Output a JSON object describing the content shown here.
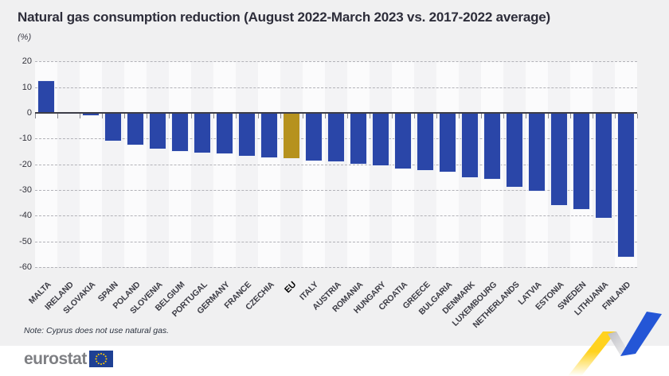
{
  "page": {
    "title": "Natural gas consumption reduction (August 2022-March 2023 vs. 2017-2022 average)",
    "subtitle": "(%)",
    "note": "Note: Cyprus does not use natural gas.",
    "brand": "eurostat"
  },
  "chart_data": {
    "type": "bar",
    "title": "Natural gas consumption reduction (August 2022-March 2023 vs. 2017-2022 average)",
    "unit_label": "(%)",
    "ylim": [
      -60,
      20
    ],
    "yticks": [
      20,
      10,
      0,
      -10,
      -20,
      -30,
      -40,
      -50,
      -60
    ],
    "grid": "horizontal-dashed",
    "legend": "none",
    "highlight_category": "EU",
    "categories": [
      "MALTA",
      "IRELAND",
      "SLOVAKIA",
      "SPAIN",
      "POLAND",
      "SLOVENIA",
      "BELGIUM",
      "PORTUGAL",
      "GERMANY",
      "FRANCE",
      "CZECHIA",
      "EU",
      "ITALY",
      "AUSTRIA",
      "ROMANIA",
      "HUNGARY",
      "CROATIA",
      "GREECE",
      "BULGARIA",
      "DENMARK",
      "LUXEMBOURG",
      "NETHERLANDS",
      "LATVIA",
      "ESTONIA",
      "SWEDEN",
      "LITHUANIA",
      "FINLAND"
    ],
    "values": [
      12.5,
      -0.2,
      -1.0,
      -10.7,
      -12.5,
      -13.8,
      -14.8,
      -15.6,
      -15.8,
      -16.8,
      -17.4,
      -17.7,
      -18.6,
      -19.0,
      -19.8,
      -20.3,
      -21.6,
      -22.2,
      -22.8,
      -24.9,
      -25.8,
      -28.8,
      -30.2,
      -35.9,
      -37.3,
      -40.9,
      -56.0
    ],
    "colors": {
      "bar": "#2a46a8",
      "highlight": "#b6921e",
      "axis": "#3d3d47",
      "grid": "#b2b2b8",
      "stripe_light": "#fbfbfc",
      "stripe_dark": "#f3f3f5",
      "background": "#f0f0f1"
    }
  }
}
